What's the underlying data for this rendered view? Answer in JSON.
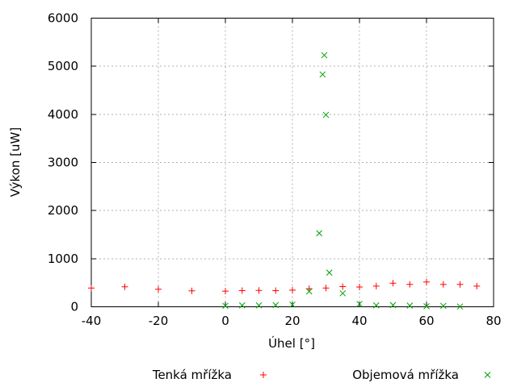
{
  "chart_data": {
    "type": "scatter",
    "title": "",
    "xlabel": "Úhel [°]",
    "ylabel": "Výkon [uW]",
    "xlim": [
      -40,
      80
    ],
    "ylim": [
      0,
      6000
    ],
    "xticks": [
      -40,
      -20,
      0,
      20,
      40,
      60,
      80
    ],
    "yticks": [
      0,
      1000,
      2000,
      3000,
      4000,
      5000,
      6000
    ],
    "grid": true,
    "grid_color": "#b0b0b0",
    "legend_position": "bottom-center",
    "series": [
      {
        "name": "Tenká mřížka",
        "marker": "plus",
        "color": "#ff0000",
        "points": [
          [
            -40,
            390
          ],
          [
            -30,
            415
          ],
          [
            -20,
            365
          ],
          [
            -10,
            330
          ],
          [
            0,
            325
          ],
          [
            5,
            335
          ],
          [
            10,
            340
          ],
          [
            15,
            335
          ],
          [
            20,
            345
          ],
          [
            25,
            375
          ],
          [
            30,
            390
          ],
          [
            35,
            420
          ],
          [
            40,
            410
          ],
          [
            45,
            430
          ],
          [
            50,
            490
          ],
          [
            55,
            465
          ],
          [
            60,
            515
          ],
          [
            65,
            465
          ],
          [
            70,
            465
          ],
          [
            75,
            430
          ]
        ]
      },
      {
        "name": "Objemová mřížka",
        "marker": "cross",
        "color": "#00a000",
        "points": [
          [
            0,
            20
          ],
          [
            5,
            30
          ],
          [
            10,
            30
          ],
          [
            15,
            35
          ],
          [
            20,
            45
          ],
          [
            25,
            320
          ],
          [
            28,
            1530
          ],
          [
            29,
            4830
          ],
          [
            29.5,
            5230
          ],
          [
            30,
            3990
          ],
          [
            31,
            710
          ],
          [
            35,
            280
          ],
          [
            40,
            60
          ],
          [
            45,
            30
          ],
          [
            50,
            35
          ],
          [
            55,
            25
          ],
          [
            60,
            10
          ],
          [
            65,
            20
          ],
          [
            70,
            5
          ]
        ]
      }
    ]
  }
}
